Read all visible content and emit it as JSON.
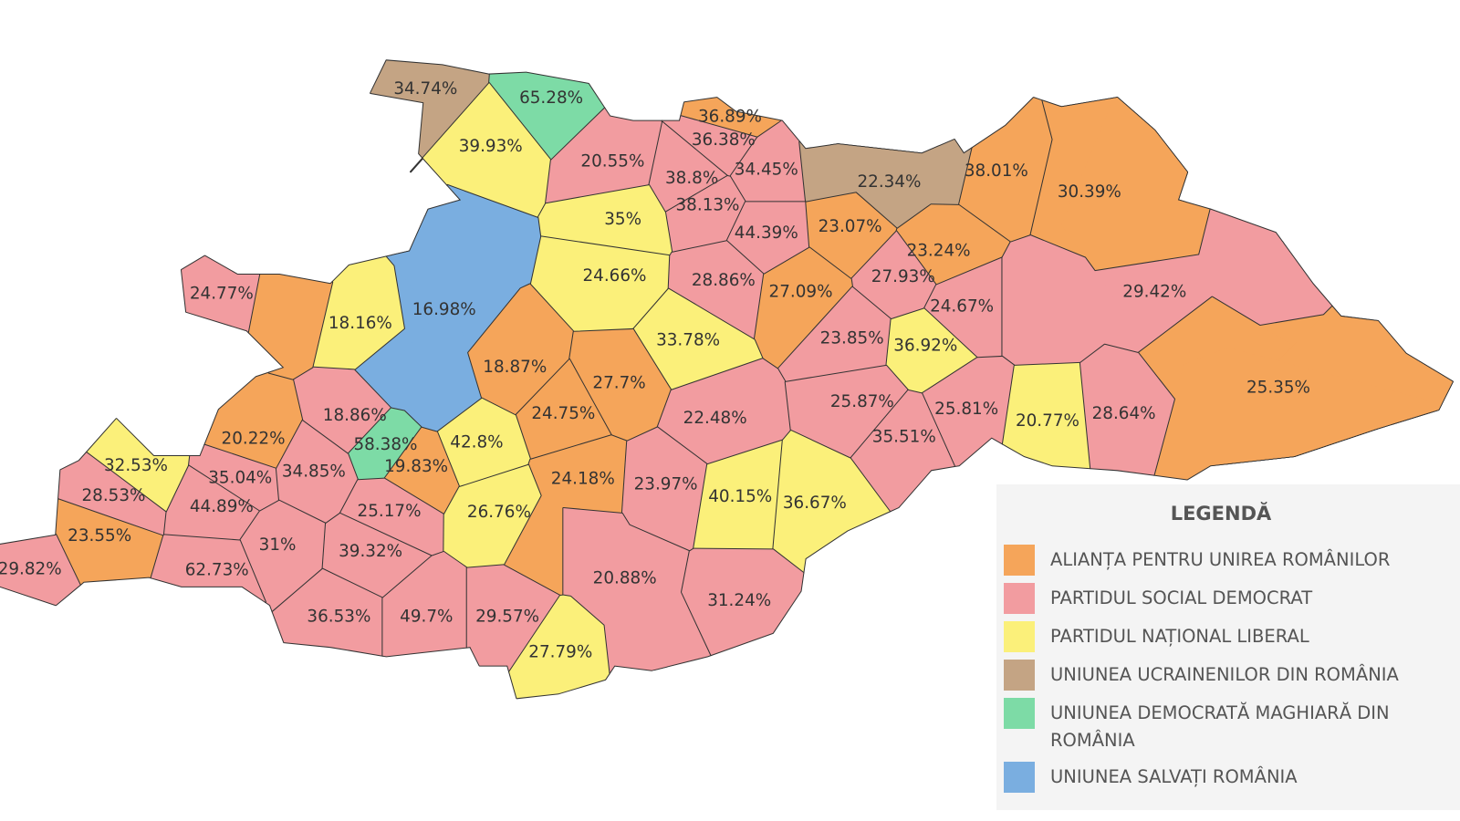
{
  "regions": [
    {
      "label": "34.74%",
      "color": "#c4a484"
    },
    {
      "label": "65.28%",
      "color": "#7ddba6"
    },
    {
      "label": "39.93%",
      "color": "#fbf07a"
    },
    {
      "label": "20.55%",
      "color": "#f29ca0"
    },
    {
      "label": "36.89%",
      "color": "#f5a55a"
    },
    {
      "label": "36.38%",
      "color": "#f29ca0"
    },
    {
      "label": "34.45%",
      "color": "#f29ca0"
    },
    {
      "label": "38.8%",
      "color": "#f29ca0"
    },
    {
      "label": "38.13%",
      "color": "#f29ca0"
    },
    {
      "label": "22.34%",
      "color": "#c4a484"
    },
    {
      "label": "38.01%",
      "color": "#f5a55a"
    },
    {
      "label": "30.39%",
      "color": "#f5a55a"
    },
    {
      "label": "35%",
      "color": "#fbf07a"
    },
    {
      "label": "44.39%",
      "color": "#f29ca0"
    },
    {
      "label": "23.07%",
      "color": "#f5a55a"
    },
    {
      "label": "23.24%",
      "color": "#f5a55a"
    },
    {
      "label": "24.66%",
      "color": "#fbf07a"
    },
    {
      "label": "28.86%",
      "color": "#f29ca0"
    },
    {
      "label": "27.93%",
      "color": "#f29ca0"
    },
    {
      "label": "27.09%",
      "color": "#f5a55a"
    },
    {
      "label": "24.67%",
      "color": "#f29ca0"
    },
    {
      "label": "29.42%",
      "color": "#f29ca0"
    },
    {
      "label": "24.77%",
      "color": "#f29ca0"
    },
    {
      "label": "16.98%",
      "color": "#7aaee0"
    },
    {
      "label": "18.16%",
      "color": "#fbf07a"
    },
    {
      "label": "33.78%",
      "color": "#fbf07a"
    },
    {
      "label": "23.85%",
      "color": "#f29ca0"
    },
    {
      "label": "36.92%",
      "color": "#fbf07a"
    },
    {
      "label": "18.87%",
      "color": "#f5a55a"
    },
    {
      "label": "27.7%",
      "color": "#f5a55a"
    },
    {
      "label": "25.35%",
      "color": "#f5a55a"
    },
    {
      "label": "18.86%",
      "color": "#f29ca0"
    },
    {
      "label": "24.75%",
      "color": "#f5a55a"
    },
    {
      "label": "22.48%",
      "color": "#f29ca0"
    },
    {
      "label": "25.87%",
      "color": "#f29ca0"
    },
    {
      "label": "25.81%",
      "color": "#f29ca0"
    },
    {
      "label": "20.77%",
      "color": "#fbf07a"
    },
    {
      "label": "28.64%",
      "color": "#f29ca0"
    },
    {
      "label": "20.22%",
      "color": "#f5a55a"
    },
    {
      "label": "58.38%",
      "color": "#7ddba6"
    },
    {
      "label": "42.8%",
      "color": "#fbf07a"
    },
    {
      "label": "35.51%",
      "color": "#f29ca0"
    },
    {
      "label": "32.53%",
      "color": "#fbf07a"
    },
    {
      "label": "19.83%",
      "color": "#f5a55a"
    },
    {
      "label": "35.04%",
      "color": "#f29ca0"
    },
    {
      "label": "34.85%",
      "color": "#f29ca0"
    },
    {
      "label": "24.18%",
      "color": "#f5a55a"
    },
    {
      "label": "23.97%",
      "color": "#f29ca0"
    },
    {
      "label": "40.15%",
      "color": "#fbf07a"
    },
    {
      "label": "36.67%",
      "color": "#fbf07a"
    },
    {
      "label": "28.53%",
      "color": "#f29ca0"
    },
    {
      "label": "44.89%",
      "color": "#f29ca0"
    },
    {
      "label": "25.17%",
      "color": "#f29ca0"
    },
    {
      "label": "26.76%",
      "color": "#fbf07a"
    },
    {
      "label": "23.55%",
      "color": "#f5a55a"
    },
    {
      "label": "31%",
      "color": "#f29ca0"
    },
    {
      "label": "39.32%",
      "color": "#f29ca0"
    },
    {
      "label": "29.82%",
      "color": "#f29ca0"
    },
    {
      "label": "62.73%",
      "color": "#f29ca0"
    },
    {
      "label": "20.88%",
      "color": "#f29ca0"
    },
    {
      "label": "31.24%",
      "color": "#f29ca0"
    },
    {
      "label": "36.53%",
      "color": "#f29ca0"
    },
    {
      "label": "49.7%",
      "color": "#f29ca0"
    },
    {
      "label": "29.57%",
      "color": "#f29ca0"
    },
    {
      "label": "27.79%",
      "color": "#fbf07a"
    },
    {
      "color": "#f5a55a"
    }
  ],
  "legend": {
    "title": "LEGENDĂ",
    "items": [
      {
        "label": "ALIANȚA PENTRU UNIREA ROMÂNILOR",
        "color": "#f5a55a"
      },
      {
        "label": "PARTIDUL SOCIAL DEMOCRAT",
        "color": "#f29ca0"
      },
      {
        "label": "PARTIDUL NAȚIONAL LIBERAL",
        "color": "#fbf07a"
      },
      {
        "label": "UNIUNEA UCRAINENILOR DIN ROMÂNIA",
        "color": "#c4a484"
      },
      {
        "label": "UNIUNEA DEMOCRATĂ MAGHIARĂ DIN ROMÂNIA",
        "color": "#7ddba6"
      },
      {
        "label": "UNIUNEA SALVAȚI ROMÂNIA",
        "color": "#7aaee0"
      }
    ]
  }
}
